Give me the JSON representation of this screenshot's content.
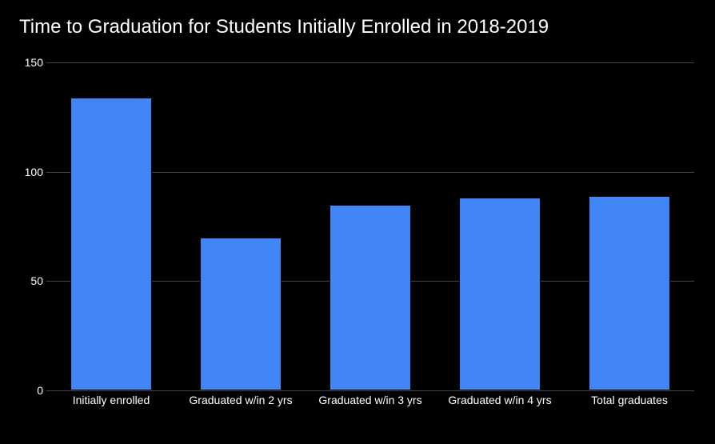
{
  "chart": {
    "type": "bar",
    "title": "Time to Graduation for Students Initially Enrolled in 2018-2019",
    "title_fontsize": 24,
    "title_color": "#ffffff",
    "background_color": "#000000",
    "grid_color": "#434343",
    "bar_color": "#4285f4",
    "bar_border_color": "#000000",
    "bar_width_ratio": 0.63,
    "axis_font_size": 14,
    "axis_label_color": "#ffffff",
    "ylim": [
      0,
      150
    ],
    "yticks": [
      {
        "value": 0,
        "label": "0"
      },
      {
        "value": 50,
        "label": "50"
      },
      {
        "value": 100,
        "label": "100"
      },
      {
        "value": 150,
        "label": "150"
      }
    ],
    "categories": [
      {
        "label": "Initially enrolled",
        "value": 134
      },
      {
        "label": "Graduated w/in 2 yrs",
        "value": 70
      },
      {
        "label": "Graduated w/in 3 yrs",
        "value": 85
      },
      {
        "label": "Graduated w/in 4 yrs",
        "value": 88
      },
      {
        "label": "Total graduates",
        "value": 89
      }
    ]
  }
}
